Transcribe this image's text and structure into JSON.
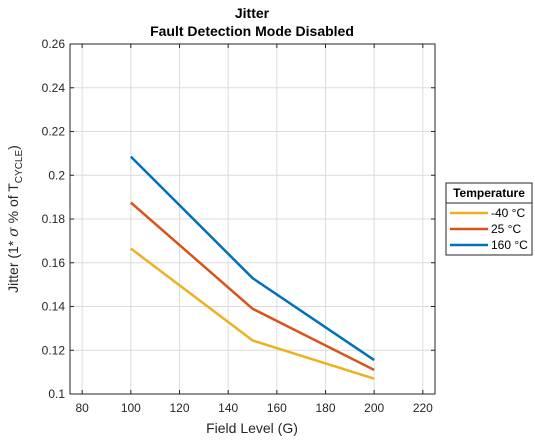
{
  "chart_data": {
    "type": "line",
    "title": "Jitter",
    "subtitle": "Fault Detection Mode Disabled",
    "xlabel": "Field Level (G)",
    "ylabel_prefix": "Jitter (1* ",
    "ylabel_sigma": "σ",
    "ylabel_mid": " % of T",
    "ylabel_sub": "CYCLE",
    "ylabel_suffix": ")",
    "xlim": [
      75,
      225
    ],
    "ylim": [
      0.1,
      0.26
    ],
    "xticks": [
      80,
      100,
      120,
      140,
      160,
      180,
      200,
      220
    ],
    "yticks": [
      0.1,
      0.12,
      0.14,
      0.16,
      0.18,
      0.2,
      0.22,
      0.24,
      0.26
    ],
    "ytick_labels": [
      "0.1",
      "0.12",
      "0.14",
      "0.16",
      "0.18",
      "0.2",
      "0.22",
      "0.24",
      "0.26"
    ],
    "grid": true,
    "legend_title": "Temperature",
    "legend_position": "outside-right",
    "x": [
      100,
      150,
      200
    ],
    "series": [
      {
        "name": "-40 °C",
        "color": "#EDB120",
        "values": [
          0.1665,
          0.1245,
          0.107
        ]
      },
      {
        "name": "25 °C",
        "color": "#D95319",
        "values": [
          0.1875,
          0.139,
          0.111
        ]
      },
      {
        "name": "160 °C",
        "color": "#0072BD",
        "values": [
          0.2085,
          0.153,
          0.1155
        ]
      }
    ]
  }
}
